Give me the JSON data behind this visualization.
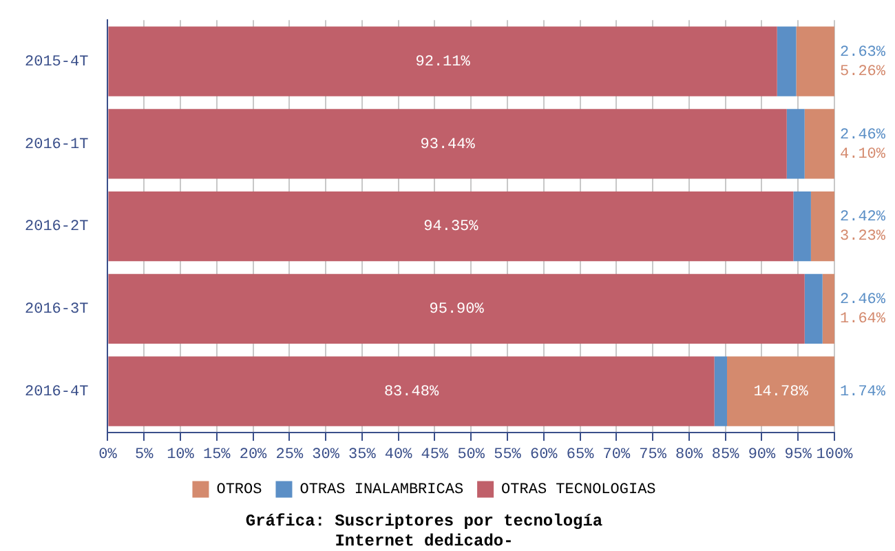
{
  "chart_data": {
    "type": "bar",
    "orientation": "horizontal",
    "stacked": true,
    "title": "Gráfica: Suscriptores por tecnología",
    "subtitle": "Internet dedicado-",
    "categories": [
      "2015-4T",
      "2016-1T",
      "2016-2T",
      "2016-3T",
      "2016-4T"
    ],
    "series": [
      {
        "name": "OTRAS TECNOLOGIAS",
        "color": "#c0606a",
        "values": [
          92.11,
          93.44,
          94.35,
          95.9,
          83.48
        ],
        "value_labels": [
          "92.11%",
          "93.44%",
          "94.35%",
          "95.90%",
          "83.48%"
        ]
      },
      {
        "name": "OTRAS INALAMBRICAS",
        "color": "#5b8fc6",
        "values": [
          2.63,
          2.46,
          2.42,
          2.46,
          1.74
        ],
        "value_labels": [
          "2.63%",
          "2.46%",
          "2.42%",
          "2.46%",
          "1.74%"
        ]
      },
      {
        "name": "OTROS",
        "color": "#d48a6e",
        "values": [
          5.26,
          4.1,
          3.23,
          1.64,
          14.78
        ],
        "value_labels": [
          "5.26%",
          "4.10%",
          "3.23%",
          "1.64%",
          "14.78%"
        ]
      }
    ],
    "xlim": [
      0,
      100
    ],
    "xticks": [
      {
        "value": 0,
        "label": "0%"
      },
      {
        "value": 5,
        "label": "5%"
      },
      {
        "value": 10,
        "label": "10%"
      },
      {
        "value": 15,
        "label": "15%"
      },
      {
        "value": 20,
        "label": "20%"
      },
      {
        "value": 25,
        "label": "25%"
      },
      {
        "value": 30,
        "label": "30%"
      },
      {
        "value": 35,
        "label": "35%"
      },
      {
        "value": 40,
        "label": "40%"
      },
      {
        "value": 45,
        "label": "45%"
      },
      {
        "value": 50,
        "label": "50%"
      },
      {
        "value": 55,
        "label": "55%"
      },
      {
        "value": 60,
        "label": "60%"
      },
      {
        "value": 65,
        "label": "65%"
      },
      {
        "value": 70,
        "label": "70%"
      },
      {
        "value": 75,
        "label": "75%"
      },
      {
        "value": 80,
        "label": "80%"
      },
      {
        "value": 85,
        "label": "85%"
      },
      {
        "value": 90,
        "label": "90%"
      },
      {
        "value": 95,
        "label": "95%"
      },
      {
        "value": 100,
        "label": "100%"
      }
    ],
    "grid": "x",
    "legend": "bottom"
  }
}
